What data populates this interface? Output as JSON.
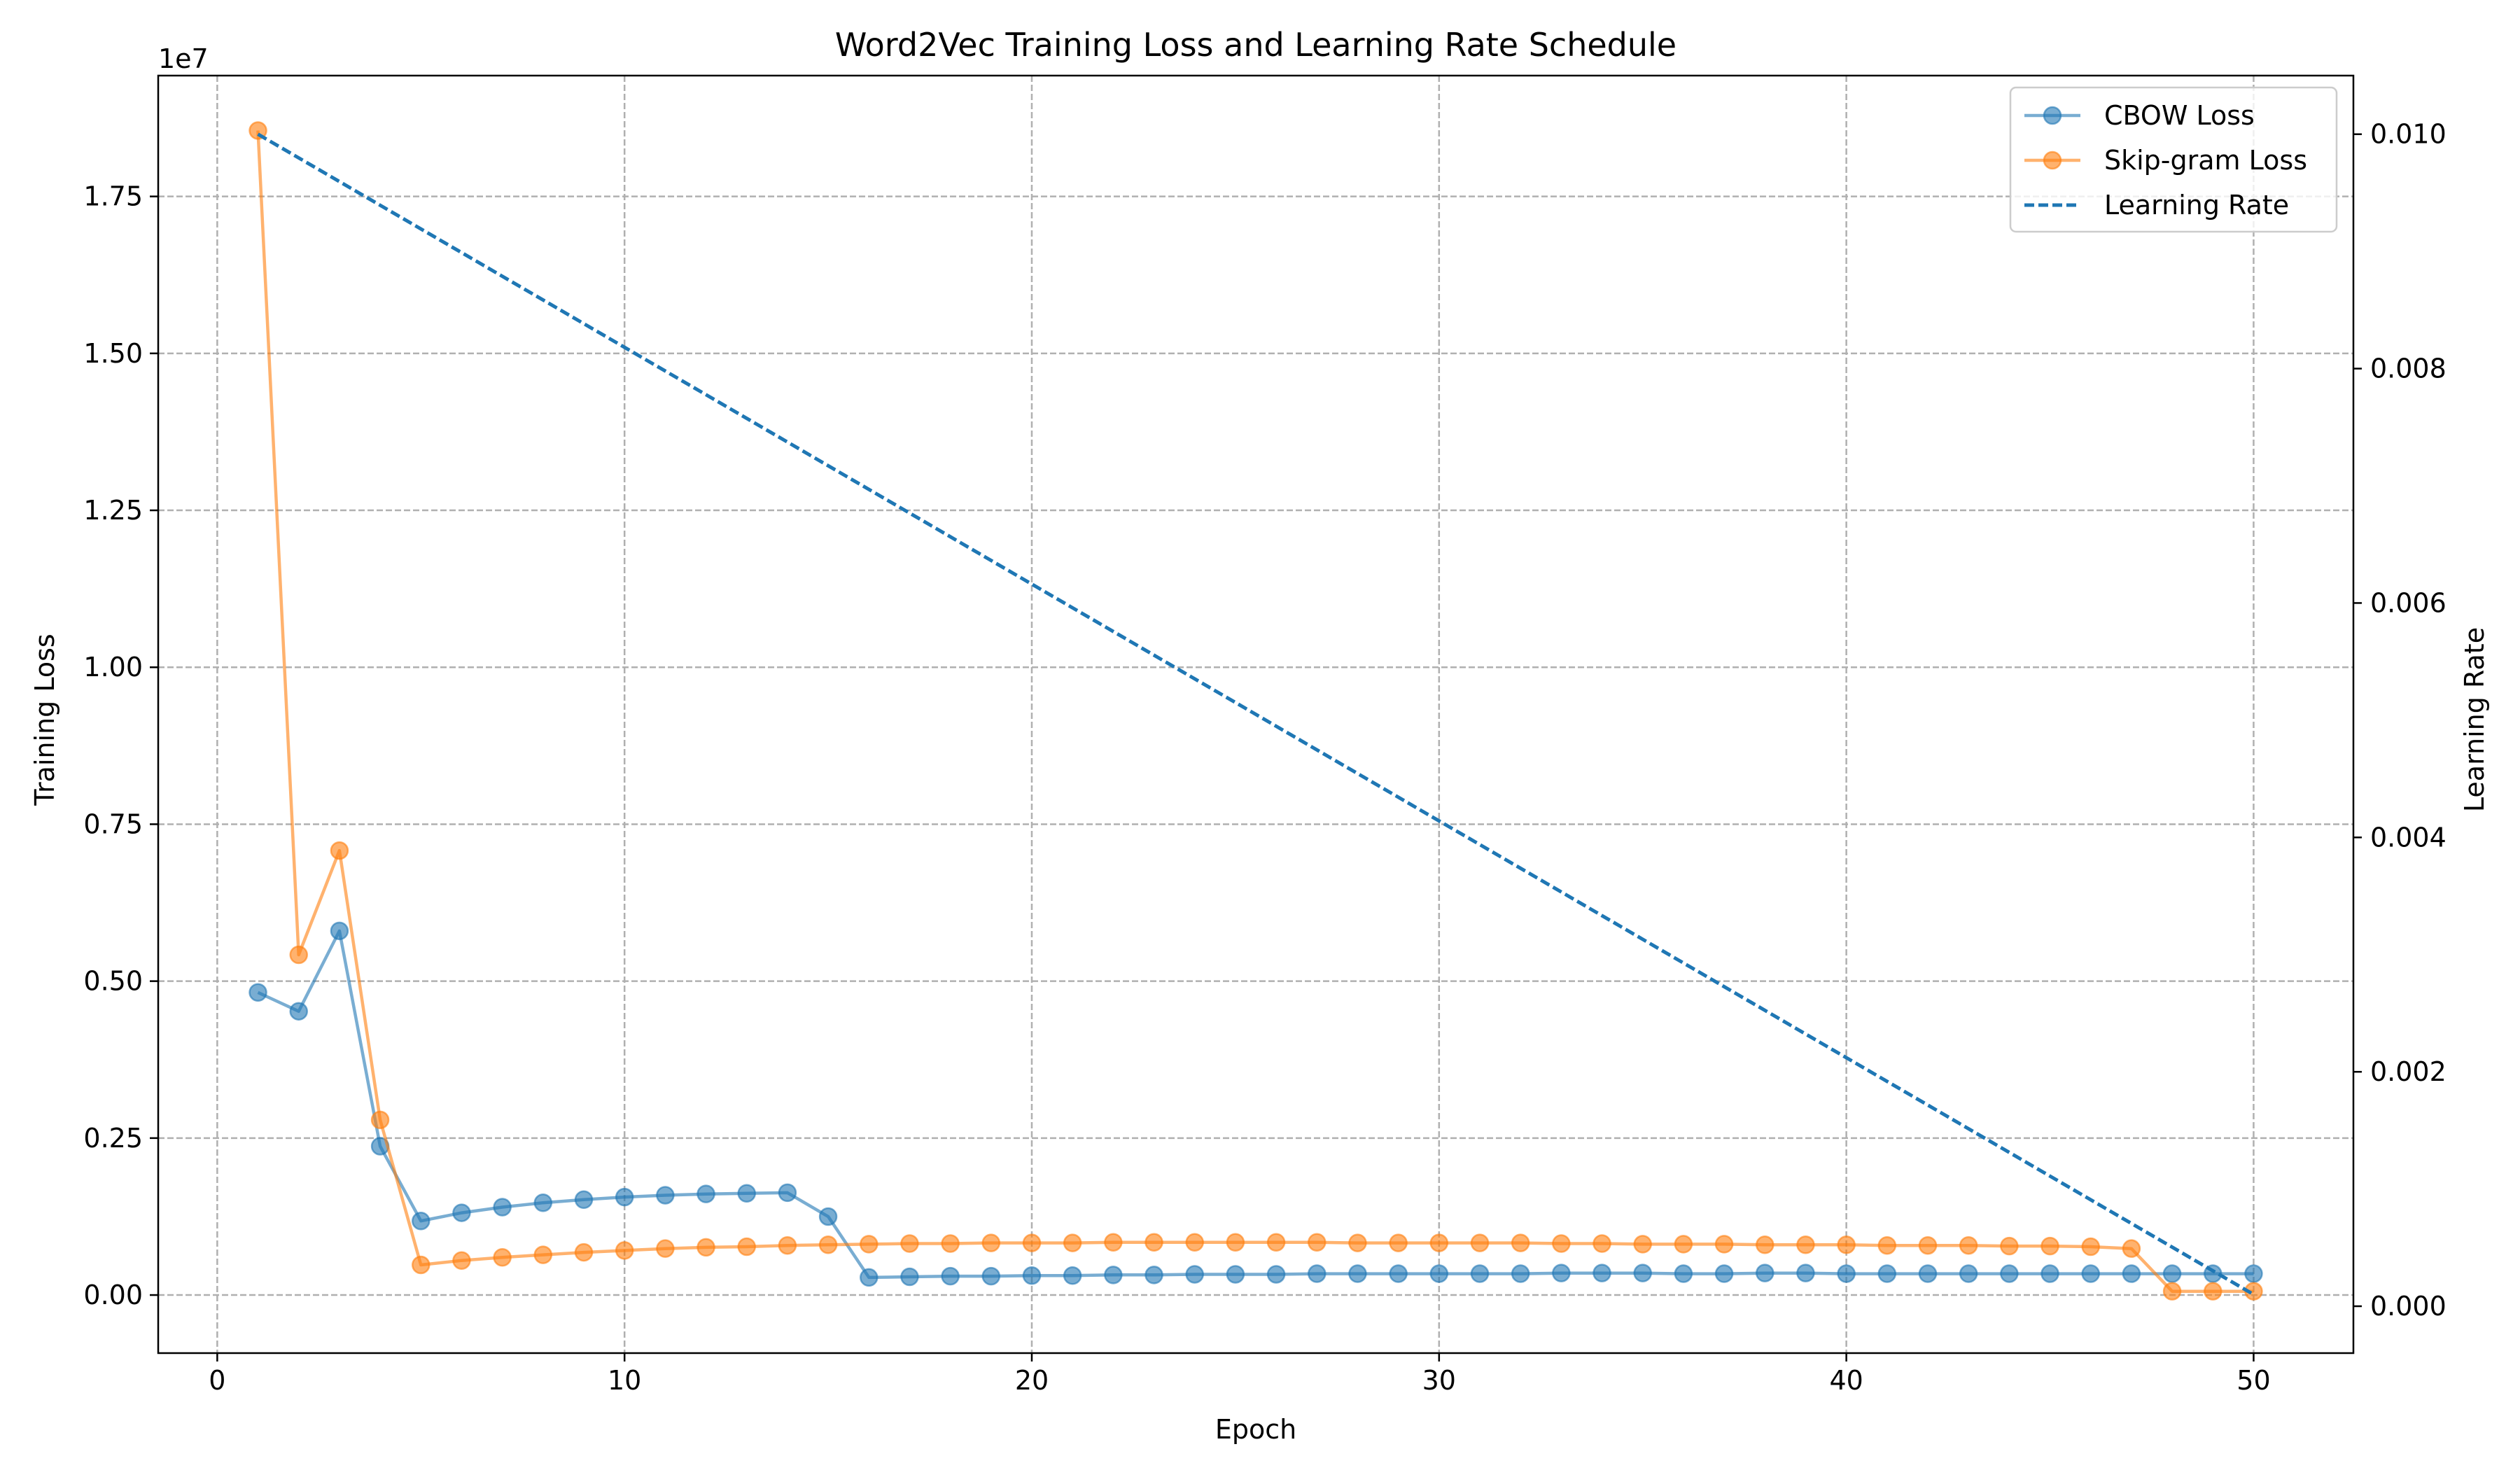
{
  "chart_data": {
    "type": "line",
    "title": "Word2Vec Training Loss and Learning Rate Schedule",
    "xlabel": "Epoch",
    "ylabel": "Training Loss",
    "y2label": "Learning Rate",
    "y_offset_label": "1e7",
    "xlim": [
      -1.45,
      52.45
    ],
    "ylim": [
      -0.0925,
      1.9425
    ],
    "y2lim": [
      -0.0004,
      0.0105
    ],
    "xticks": [
      0,
      10,
      20,
      30,
      40,
      50
    ],
    "xtick_labels": [
      "0",
      "10",
      "20",
      "30",
      "40",
      "50"
    ],
    "yticks": [
      0,
      0.25,
      0.5,
      0.75,
      1.0,
      1.25,
      1.5,
      1.75
    ],
    "ytick_labels": [
      "0.00",
      "0.25",
      "0.50",
      "0.75",
      "1.00",
      "1.25",
      "1.50",
      "1.75"
    ],
    "y2ticks": [
      0,
      0.002,
      0.004,
      0.006,
      0.008,
      0.01
    ],
    "y2tick_labels": [
      "0.000",
      "0.002",
      "0.004",
      "0.006",
      "0.008",
      "0.010"
    ],
    "grid": true,
    "legend_position": "top-right",
    "x": [
      1,
      2,
      3,
      4,
      5,
      6,
      7,
      8,
      9,
      10,
      11,
      12,
      13,
      14,
      15,
      16,
      17,
      18,
      19,
      20,
      21,
      22,
      23,
      24,
      25,
      26,
      27,
      28,
      29,
      30,
      31,
      32,
      33,
      34,
      35,
      36,
      37,
      38,
      39,
      40,
      41,
      42,
      43,
      44,
      45,
      46,
      47,
      48,
      49,
      50
    ],
    "series": [
      {
        "name": "CBOW Loss",
        "axis": "left",
        "color": "#1f77b4",
        "style": "solid-marker",
        "values": [
          0.482,
          0.452,
          0.58,
          0.237,
          0.118,
          0.131,
          0.14,
          0.147,
          0.152,
          0.156,
          0.159,
          0.161,
          0.162,
          0.163,
          0.125,
          0.028,
          0.029,
          0.03,
          0.03,
          0.031,
          0.031,
          0.032,
          0.032,
          0.033,
          0.033,
          0.033,
          0.034,
          0.034,
          0.034,
          0.034,
          0.034,
          0.034,
          0.035,
          0.035,
          0.035,
          0.034,
          0.034,
          0.035,
          0.035,
          0.034,
          0.034,
          0.034,
          0.034,
          0.034,
          0.034,
          0.034,
          0.034,
          0.034,
          0.034,
          0.034
        ]
      },
      {
        "name": "Skip-gram Loss",
        "axis": "left",
        "color": "#ff7f0e",
        "style": "solid-marker",
        "values": [
          1.855,
          0.542,
          0.708,
          0.279,
          0.048,
          0.055,
          0.06,
          0.064,
          0.068,
          0.071,
          0.074,
          0.076,
          0.077,
          0.079,
          0.08,
          0.081,
          0.082,
          0.082,
          0.083,
          0.083,
          0.083,
          0.084,
          0.084,
          0.084,
          0.084,
          0.084,
          0.084,
          0.083,
          0.083,
          0.083,
          0.083,
          0.083,
          0.082,
          0.082,
          0.081,
          0.081,
          0.081,
          0.08,
          0.08,
          0.08,
          0.079,
          0.079,
          0.079,
          0.078,
          0.078,
          0.077,
          0.074,
          0.006,
          0.006,
          0.006
        ]
      },
      {
        "name": "Learning Rate",
        "axis": "right",
        "color": "#1f77b4",
        "style": "dashed",
        "x": [
          1,
          50
        ],
        "values": [
          0.01,
          0.0001
        ]
      }
    ]
  }
}
